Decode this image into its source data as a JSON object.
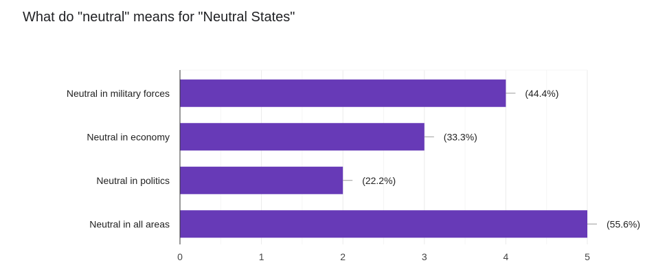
{
  "question": {
    "title": "What do \"neutral\" means for \"Neutral States\""
  },
  "colors": {
    "bar": "#673ab7",
    "grid": "#ebebeb",
    "axis": "#333333",
    "label_text": "#222222"
  },
  "chart_data": {
    "type": "bar",
    "orientation": "horizontal",
    "title": "",
    "xlabel": "",
    "ylabel": "",
    "categories": [
      "Neutral in military forces",
      "Neutral in economy",
      "Neutral in politics",
      "Neutral in all areas"
    ],
    "values": [
      4,
      3,
      2,
      5
    ],
    "data_labels": [
      "(44.4%)",
      "(33.3%)",
      "(22.2%)",
      "(55.6%)"
    ],
    "xlim": [
      0,
      5
    ],
    "xticks": [
      0,
      1,
      2,
      3,
      4,
      5
    ],
    "grid": true,
    "legend": "none"
  }
}
